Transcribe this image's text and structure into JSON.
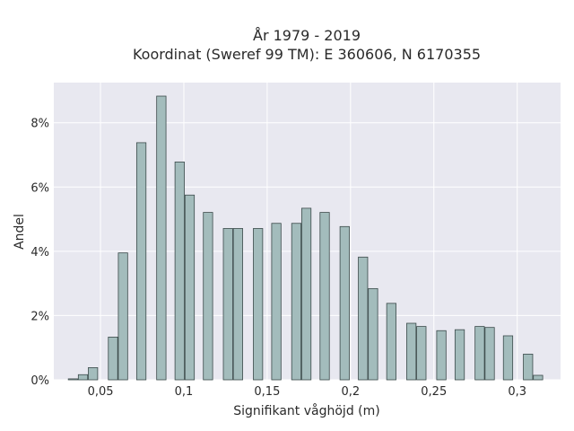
{
  "chart_data": {
    "type": "bar",
    "title_line1": "År 1979 - 2019",
    "title_line2": "Koordinat (Sweref 99 TM): E 360606, N 6170355",
    "xlabel": "Signifikant våghöjd (m)",
    "ylabel": "Andel",
    "xlim": [
      0.022,
      0.326
    ],
    "ylim": [
      0,
      9.25
    ],
    "x_ticks": [
      {
        "value": 0.05,
        "label": "0,05"
      },
      {
        "value": 0.1,
        "label": "0,1"
      },
      {
        "value": 0.15,
        "label": "0,15"
      },
      {
        "value": 0.2,
        "label": "0,2"
      },
      {
        "value": 0.25,
        "label": "0,25"
      },
      {
        "value": 0.3,
        "label": "0,3"
      }
    ],
    "y_ticks": [
      {
        "value": 0,
        "label": "0%"
      },
      {
        "value": 2,
        "label": "2%"
      },
      {
        "value": 4,
        "label": "4%"
      },
      {
        "value": 6,
        "label": "6%"
      },
      {
        "value": 8,
        "label": "8%"
      }
    ],
    "bar_width": 0.0056,
    "grid": true,
    "colors": {
      "bar_fill": "#a3bcbc",
      "bar_stroke": "#3b4a4a",
      "plot_bg": "#e8e8f0",
      "grid": "#ffffff"
    },
    "bars": [
      {
        "x": 0.0335,
        "y": 0.03
      },
      {
        "x": 0.0395,
        "y": 0.16
      },
      {
        "x": 0.0455,
        "y": 0.38
      },
      {
        "x": 0.0575,
        "y": 1.33
      },
      {
        "x": 0.0635,
        "y": 3.95
      },
      {
        "x": 0.0745,
        "y": 7.38
      },
      {
        "x": 0.0865,
        "y": 8.83
      },
      {
        "x": 0.0975,
        "y": 6.78
      },
      {
        "x": 0.1035,
        "y": 5.75
      },
      {
        "x": 0.1145,
        "y": 5.21
      },
      {
        "x": 0.1265,
        "y": 4.71
      },
      {
        "x": 0.1325,
        "y": 4.71
      },
      {
        "x": 0.1445,
        "y": 4.71
      },
      {
        "x": 0.1555,
        "y": 4.87
      },
      {
        "x": 0.1675,
        "y": 4.87
      },
      {
        "x": 0.1735,
        "y": 5.34
      },
      {
        "x": 0.1845,
        "y": 5.21
      },
      {
        "x": 0.1965,
        "y": 4.77
      },
      {
        "x": 0.2075,
        "y": 3.82
      },
      {
        "x": 0.2135,
        "y": 2.84
      },
      {
        "x": 0.2245,
        "y": 2.38
      },
      {
        "x": 0.2365,
        "y": 1.76
      },
      {
        "x": 0.2425,
        "y": 1.66
      },
      {
        "x": 0.2545,
        "y": 1.53
      },
      {
        "x": 0.2655,
        "y": 1.56
      },
      {
        "x": 0.2775,
        "y": 1.66
      },
      {
        "x": 0.2835,
        "y": 1.63
      },
      {
        "x": 0.2945,
        "y": 1.37
      },
      {
        "x": 0.3065,
        "y": 0.8
      },
      {
        "x": 0.3125,
        "y": 0.14
      }
    ]
  }
}
